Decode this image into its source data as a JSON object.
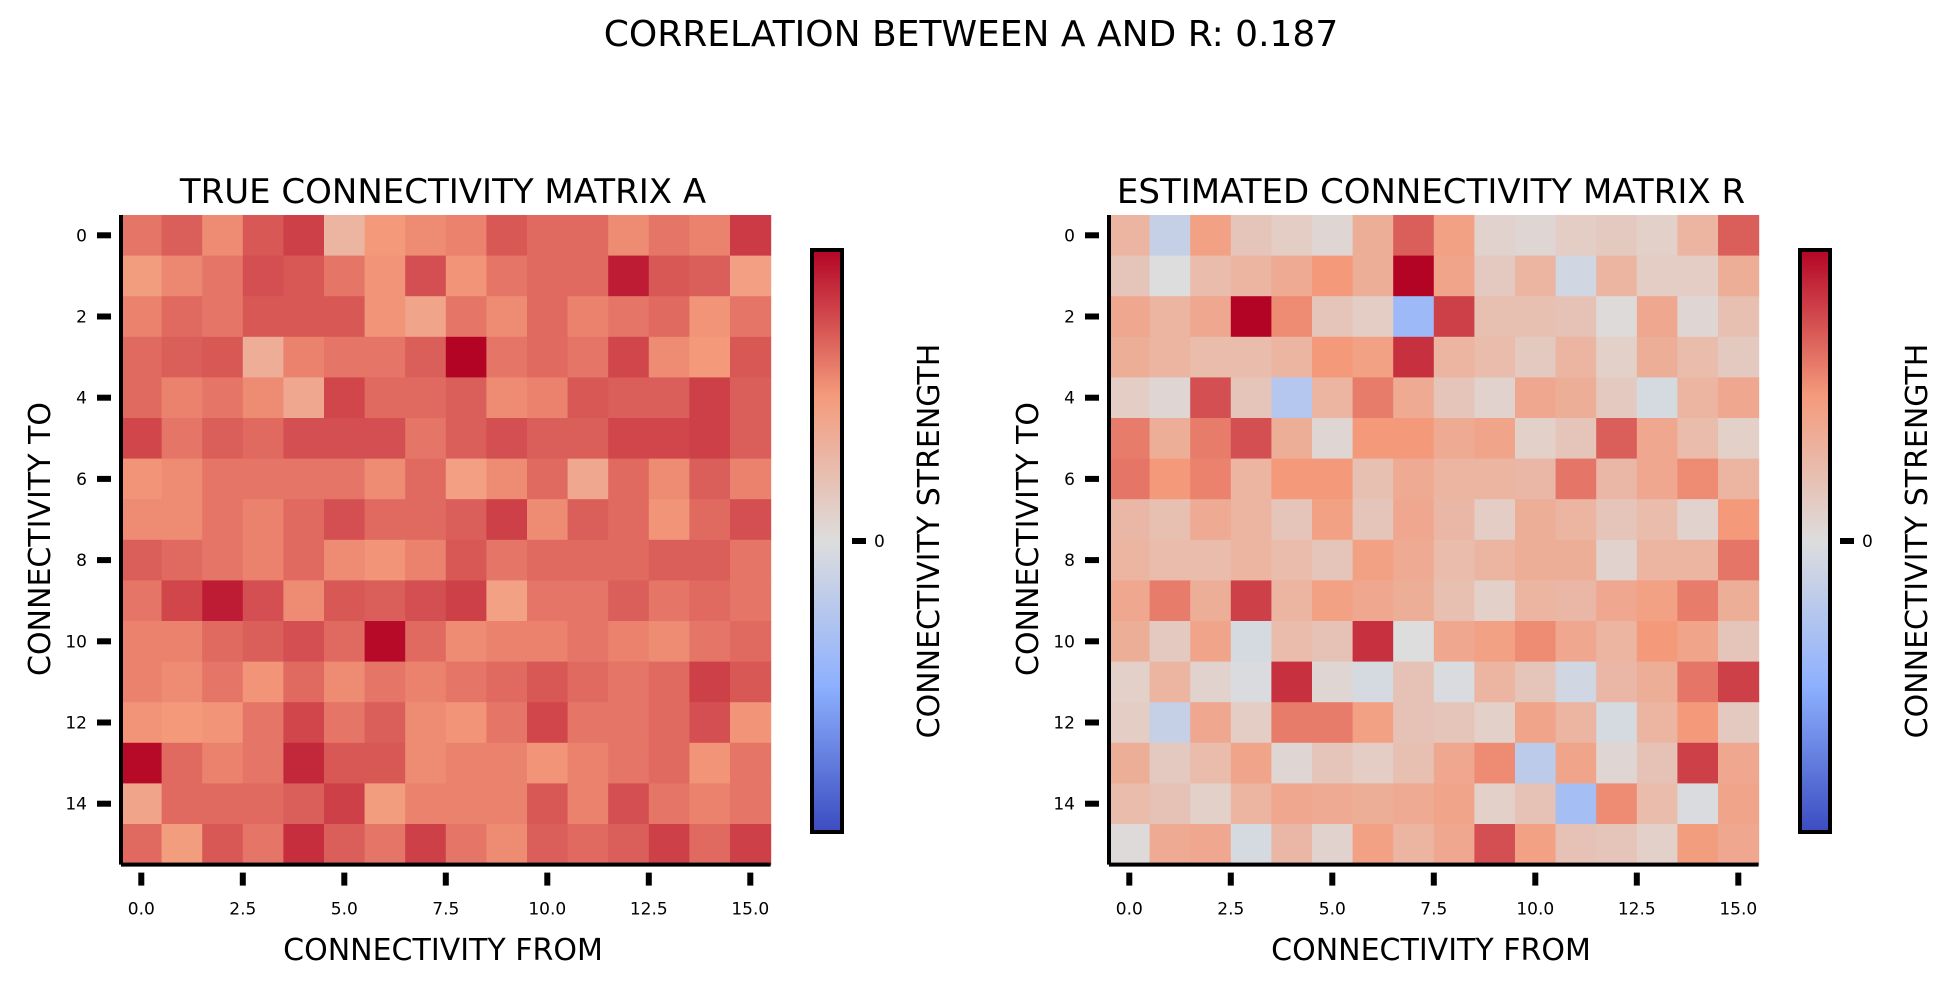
{
  "suptitle": "CORRELATION BETWEEN A AND R: 0.187",
  "colorscale": {
    "low": "#3b4cc0",
    "mid": "#dddddd",
    "high": "#b40426",
    "vmin": -1,
    "vmax": 1
  },
  "chart_data": [
    {
      "type": "heatmap",
      "title": "TRUE CONNECTIVITY MATRIX A",
      "xlabel": "CONNECTIVITY FROM",
      "ylabel": "CONNECTIVITY TO",
      "xticks": [
        "0.0",
        "2.5",
        "5.0",
        "7.5",
        "10.0",
        "12.5",
        "15.0"
      ],
      "yticks": [
        "0",
        "2",
        "4",
        "6",
        "8",
        "10",
        "12",
        "14"
      ],
      "colorbar_label": "CONNECTIVITY STRENGTH",
      "colorbar_ticks": [
        "0"
      ],
      "values": [
        [
          0.62,
          0.7,
          0.55,
          0.72,
          0.8,
          0.3,
          0.5,
          0.55,
          0.58,
          0.72,
          0.66,
          0.66,
          0.55,
          0.62,
          0.58,
          0.82
        ],
        [
          0.48,
          0.56,
          0.62,
          0.75,
          0.72,
          0.62,
          0.52,
          0.75,
          0.52,
          0.62,
          0.66,
          0.66,
          0.92,
          0.72,
          0.7,
          0.46
        ],
        [
          0.58,
          0.66,
          0.62,
          0.72,
          0.72,
          0.72,
          0.52,
          0.42,
          0.62,
          0.55,
          0.66,
          0.58,
          0.62,
          0.66,
          0.52,
          0.62
        ],
        [
          0.66,
          0.7,
          0.72,
          0.36,
          0.58,
          0.62,
          0.62,
          0.7,
          1.0,
          0.62,
          0.66,
          0.62,
          0.78,
          0.55,
          0.5,
          0.72
        ],
        [
          0.66,
          0.58,
          0.62,
          0.55,
          0.4,
          0.78,
          0.66,
          0.66,
          0.7,
          0.55,
          0.58,
          0.72,
          0.7,
          0.7,
          0.8,
          0.7
        ],
        [
          0.78,
          0.62,
          0.7,
          0.66,
          0.75,
          0.75,
          0.75,
          0.62,
          0.7,
          0.75,
          0.7,
          0.7,
          0.78,
          0.78,
          0.8,
          0.7
        ],
        [
          0.52,
          0.55,
          0.62,
          0.62,
          0.62,
          0.62,
          0.55,
          0.66,
          0.46,
          0.55,
          0.66,
          0.4,
          0.66,
          0.55,
          0.7,
          0.58
        ],
        [
          0.55,
          0.55,
          0.62,
          0.58,
          0.66,
          0.75,
          0.66,
          0.66,
          0.7,
          0.8,
          0.55,
          0.7,
          0.66,
          0.52,
          0.66,
          0.75
        ],
        [
          0.7,
          0.66,
          0.62,
          0.58,
          0.66,
          0.55,
          0.52,
          0.58,
          0.72,
          0.62,
          0.66,
          0.66,
          0.66,
          0.7,
          0.7,
          0.62
        ],
        [
          0.62,
          0.78,
          0.92,
          0.75,
          0.55,
          0.72,
          0.7,
          0.75,
          0.8,
          0.45,
          0.62,
          0.62,
          0.7,
          0.62,
          0.66,
          0.62
        ],
        [
          0.58,
          0.58,
          0.66,
          0.7,
          0.75,
          0.66,
          0.98,
          0.66,
          0.55,
          0.58,
          0.58,
          0.62,
          0.58,
          0.55,
          0.62,
          0.66
        ],
        [
          0.58,
          0.55,
          0.62,
          0.52,
          0.66,
          0.55,
          0.62,
          0.58,
          0.62,
          0.66,
          0.72,
          0.66,
          0.62,
          0.66,
          0.8,
          0.72
        ],
        [
          0.52,
          0.5,
          0.52,
          0.62,
          0.78,
          0.62,
          0.7,
          0.55,
          0.52,
          0.62,
          0.78,
          0.62,
          0.62,
          0.66,
          0.75,
          0.52
        ],
        [
          0.98,
          0.66,
          0.58,
          0.62,
          0.88,
          0.72,
          0.72,
          0.55,
          0.58,
          0.58,
          0.52,
          0.58,
          0.62,
          0.66,
          0.52,
          0.62
        ],
        [
          0.42,
          0.66,
          0.66,
          0.66,
          0.7,
          0.8,
          0.48,
          0.58,
          0.58,
          0.58,
          0.72,
          0.58,
          0.75,
          0.62,
          0.58,
          0.62
        ],
        [
          0.66,
          0.48,
          0.72,
          0.62,
          0.86,
          0.7,
          0.62,
          0.8,
          0.62,
          0.55,
          0.7,
          0.66,
          0.7,
          0.8,
          0.66,
          0.8
        ]
      ]
    },
    {
      "type": "heatmap",
      "title": "ESTIMATED CONNECTIVITY MATRIX R",
      "xlabel": "CONNECTIVITY FROM",
      "ylabel": "CONNECTIVITY TO",
      "xticks": [
        "0.0",
        "2.5",
        "5.0",
        "7.5",
        "10.0",
        "12.5",
        "15.0"
      ],
      "yticks": [
        "0",
        "2",
        "4",
        "6",
        "8",
        "10",
        "12",
        "14"
      ],
      "colorbar_label": "CONNECTIVITY STRENGTH",
      "colorbar_ticks": [
        "0"
      ],
      "values": [
        [
          0.3,
          -0.15,
          0.45,
          0.18,
          0.12,
          0.05,
          0.35,
          0.7,
          0.45,
          0.08,
          0.05,
          0.12,
          0.15,
          0.1,
          0.3,
          0.7
        ],
        [
          0.18,
          0.0,
          0.25,
          0.3,
          0.38,
          0.5,
          0.35,
          1.0,
          0.42,
          0.15,
          0.3,
          -0.08,
          0.3,
          0.12,
          0.12,
          0.35
        ],
        [
          0.4,
          0.3,
          0.4,
          1.0,
          0.55,
          0.18,
          0.12,
          -0.4,
          0.8,
          0.22,
          0.22,
          0.2,
          0.02,
          0.4,
          0.05,
          0.22
        ],
        [
          0.35,
          0.3,
          0.25,
          0.25,
          0.3,
          0.5,
          0.45,
          0.85,
          0.3,
          0.25,
          0.15,
          0.3,
          0.1,
          0.35,
          0.25,
          0.15
        ],
        [
          0.12,
          0.05,
          0.75,
          0.18,
          -0.25,
          0.3,
          0.6,
          0.38,
          0.18,
          0.08,
          0.4,
          0.35,
          0.15,
          -0.05,
          0.3,
          0.4
        ],
        [
          0.6,
          0.35,
          0.6,
          0.75,
          0.35,
          0.05,
          0.5,
          0.5,
          0.38,
          0.42,
          0.1,
          0.18,
          0.7,
          0.4,
          0.25,
          0.1
        ],
        [
          0.62,
          0.5,
          0.58,
          0.3,
          0.5,
          0.5,
          0.22,
          0.38,
          0.3,
          0.3,
          0.28,
          0.62,
          0.28,
          0.4,
          0.55,
          0.3
        ],
        [
          0.28,
          0.22,
          0.38,
          0.3,
          0.18,
          0.45,
          0.18,
          0.4,
          0.28,
          0.12,
          0.35,
          0.3,
          0.18,
          0.25,
          0.08,
          0.5
        ],
        [
          0.3,
          0.25,
          0.25,
          0.3,
          0.25,
          0.18,
          0.45,
          0.38,
          0.25,
          0.3,
          0.35,
          0.35,
          0.08,
          0.3,
          0.3,
          0.62
        ],
        [
          0.4,
          0.6,
          0.35,
          0.8,
          0.3,
          0.45,
          0.4,
          0.35,
          0.22,
          0.1,
          0.3,
          0.28,
          0.4,
          0.45,
          0.6,
          0.35
        ],
        [
          0.35,
          0.15,
          0.42,
          -0.05,
          0.25,
          0.2,
          0.85,
          0.0,
          0.4,
          0.45,
          0.55,
          0.4,
          0.3,
          0.5,
          0.42,
          0.18
        ],
        [
          0.1,
          0.3,
          0.08,
          -0.02,
          0.85,
          0.05,
          -0.05,
          0.2,
          -0.02,
          0.3,
          0.18,
          -0.08,
          0.28,
          0.35,
          0.62,
          0.8
        ],
        [
          0.12,
          -0.15,
          0.4,
          0.12,
          0.6,
          0.6,
          0.45,
          0.2,
          0.18,
          0.1,
          0.42,
          0.3,
          -0.05,
          0.3,
          0.5,
          0.15
        ],
        [
          0.35,
          0.15,
          0.25,
          0.42,
          0.05,
          0.18,
          0.12,
          0.22,
          0.4,
          0.55,
          -0.2,
          0.42,
          0.05,
          0.2,
          0.8,
          0.4
        ],
        [
          0.25,
          0.2,
          0.1,
          0.3,
          0.4,
          0.38,
          0.35,
          0.38,
          0.42,
          0.1,
          0.2,
          -0.35,
          0.55,
          0.25,
          -0.02,
          0.42
        ],
        [
          0.02,
          0.38,
          0.4,
          -0.05,
          0.28,
          0.08,
          0.45,
          0.3,
          0.4,
          0.75,
          0.45,
          0.2,
          0.18,
          0.1,
          0.48,
          0.4
        ]
      ]
    }
  ]
}
